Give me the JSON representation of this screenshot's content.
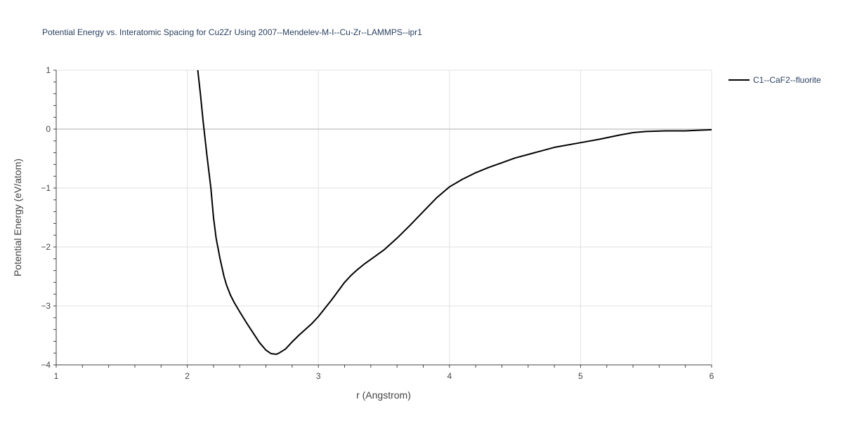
{
  "chart_data": {
    "type": "line",
    "title": "Potential Energy vs. Interatomic Spacing for Cu2Zr Using 2007--Mendelev-M-I--Cu-Zr--LAMMPS--ipr1",
    "xlabel": "r (Angstrom)",
    "ylabel": "Potential Energy (eV/atom)",
    "xlim": [
      1,
      6
    ],
    "ylim": [
      -4,
      1
    ],
    "xticks": [
      1,
      2,
      3,
      4,
      5,
      6
    ],
    "xtick_labels": [
      "1",
      "2",
      "3",
      "4",
      "5",
      "6"
    ],
    "yticks": [
      1,
      0,
      -1,
      -2,
      -3,
      -4
    ],
    "ytick_labels": [
      "1",
      "0",
      "−1",
      "−2",
      "−3",
      "−4"
    ],
    "grid": true,
    "legend_position": "top-right",
    "series": [
      {
        "name": "C1--CaF2--fluorite",
        "color": "#000000",
        "x": [
          2.08,
          2.1,
          2.12,
          2.15,
          2.18,
          2.2,
          2.22,
          2.25,
          2.28,
          2.3,
          2.33,
          2.36,
          2.4,
          2.45,
          2.5,
          2.55,
          2.6,
          2.64,
          2.68,
          2.7,
          2.75,
          2.8,
          2.85,
          2.9,
          2.95,
          3.0,
          3.05,
          3.1,
          3.15,
          3.2,
          3.25,
          3.3,
          3.35,
          3.4,
          3.45,
          3.5,
          3.6,
          3.7,
          3.8,
          3.9,
          4.0,
          4.1,
          4.2,
          4.3,
          4.4,
          4.5,
          4.65,
          4.8,
          5.0,
          5.15,
          5.3,
          5.4,
          5.5,
          5.65,
          5.8,
          5.9,
          6.0
        ],
        "y": [
          1.0,
          0.6,
          0.15,
          -0.45,
          -1.0,
          -1.5,
          -1.85,
          -2.2,
          -2.5,
          -2.65,
          -2.82,
          -2.95,
          -3.1,
          -3.28,
          -3.45,
          -3.62,
          -3.75,
          -3.81,
          -3.82,
          -3.8,
          -3.73,
          -3.61,
          -3.5,
          -3.4,
          -3.3,
          -3.18,
          -3.04,
          -2.9,
          -2.75,
          -2.6,
          -2.48,
          -2.38,
          -2.29,
          -2.21,
          -2.13,
          -2.05,
          -1.85,
          -1.63,
          -1.4,
          -1.17,
          -0.98,
          -0.85,
          -0.74,
          -0.65,
          -0.57,
          -0.49,
          -0.4,
          -0.31,
          -0.23,
          -0.17,
          -0.1,
          -0.06,
          -0.04,
          -0.03,
          -0.03,
          -0.02,
          -0.01
        ]
      }
    ]
  }
}
